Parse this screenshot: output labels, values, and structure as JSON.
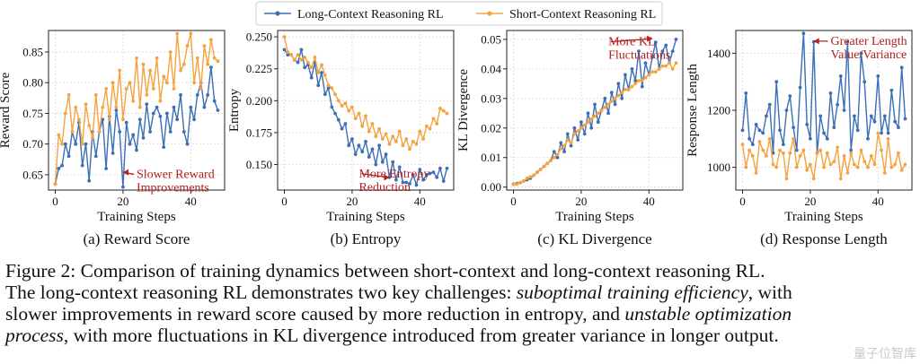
{
  "legend": {
    "long": "Long-Context Reasoning RL",
    "short": "Short-Context Reasoning RL"
  },
  "colors": {
    "long": "#3b6fb6",
    "short": "#f5a340",
    "annot": "#b22020",
    "grid": "#d9d9d9"
  },
  "chart_data": [
    {
      "type": "line",
      "caption": "(a) Reward Score",
      "xlabel": "Training Steps",
      "ylabel": "Reward Score",
      "xlim": [
        -2,
        50
      ],
      "ylim": [
        0.625,
        0.885
      ],
      "xticks": [
        0,
        20,
        40
      ],
      "yticks": [
        0.65,
        0.7,
        0.75,
        0.8,
        0.85
      ],
      "ytick_labels": [
        "0.65",
        "0.70",
        "0.75",
        "0.80",
        "0.85"
      ],
      "annotation": {
        "lines": [
          "Slower Reward",
          "Improvements"
        ],
        "x": 24,
        "y": 0.645,
        "arrow_to": [
          20,
          0.648
        ]
      },
      "series": [
        {
          "key": "long",
          "name": "Long-Context Reasoning RL",
          "values": [
            0.635,
            0.66,
            0.665,
            0.7,
            0.68,
            0.72,
            0.7,
            0.735,
            0.665,
            0.7,
            0.64,
            0.72,
            0.68,
            0.72,
            0.74,
            0.66,
            0.745,
            0.685,
            0.755,
            0.72,
            0.63,
            0.735,
            0.7,
            0.715,
            0.69,
            0.74,
            0.71,
            0.765,
            0.72,
            0.75,
            0.76,
            0.745,
            0.695,
            0.75,
            0.72,
            0.76,
            0.74,
            0.78,
            0.72,
            0.7,
            0.76,
            0.74,
            0.78,
            0.8,
            0.76,
            0.78,
            0.825,
            0.77,
            0.755
          ]
        },
        {
          "key": "short",
          "name": "Short-Context Reasoning RL",
          "values": [
            0.635,
            0.715,
            0.7,
            0.75,
            0.78,
            0.72,
            0.76,
            0.74,
            0.7,
            0.765,
            0.73,
            0.71,
            0.78,
            0.72,
            0.76,
            0.79,
            0.74,
            0.8,
            0.76,
            0.82,
            0.74,
            0.79,
            0.8,
            0.77,
            0.84,
            0.76,
            0.83,
            0.78,
            0.82,
            0.79,
            0.84,
            0.77,
            0.81,
            0.8,
            0.85,
            0.79,
            0.88,
            0.82,
            0.83,
            0.86,
            0.88,
            0.8,
            0.84,
            0.79,
            0.86,
            0.83,
            0.87,
            0.84,
            0.835
          ]
        }
      ]
    },
    {
      "type": "line",
      "caption": "(b) Entropy",
      "xlabel": "Training Steps",
      "ylabel": "Entropy",
      "xlim": [
        -2,
        50
      ],
      "ylim": [
        0.13,
        0.255
      ],
      "xticks": [
        0,
        20,
        40
      ],
      "yticks": [
        0.15,
        0.175,
        0.2,
        0.225,
        0.25
      ],
      "ytick_labels": [
        "0.150",
        "0.175",
        "0.200",
        "0.225",
        "0.250"
      ],
      "annotation": {
        "lines": [
          "More Entropy",
          "Reduction"
        ],
        "x": 22,
        "y": 0.14,
        "arrow_to": [
          31,
          0.137
        ]
      },
      "series": [
        {
          "key": "long",
          "name": "Long-Context Reasoning RL",
          "values": [
            0.24,
            0.236,
            0.236,
            0.232,
            0.23,
            0.24,
            0.226,
            0.228,
            0.218,
            0.23,
            0.212,
            0.222,
            0.205,
            0.21,
            0.195,
            0.19,
            0.185,
            0.178,
            0.182,
            0.165,
            0.17,
            0.158,
            0.165,
            0.16,
            0.168,
            0.156,
            0.162,
            0.15,
            0.165,
            0.152,
            0.158,
            0.14,
            0.152,
            0.138,
            0.148,
            0.136,
            0.136,
            0.135,
            0.142,
            0.134,
            0.146,
            0.138,
            0.142,
            0.143,
            0.144,
            0.14,
            0.147,
            0.137,
            0.147
          ]
        },
        {
          "key": "short",
          "name": "Short-Context Reasoning RL",
          "values": [
            0.25,
            0.238,
            0.236,
            0.232,
            0.236,
            0.232,
            0.234,
            0.23,
            0.226,
            0.234,
            0.222,
            0.228,
            0.22,
            0.212,
            0.21,
            0.205,
            0.2,
            0.196,
            0.198,
            0.192,
            0.195,
            0.186,
            0.19,
            0.18,
            0.188,
            0.176,
            0.182,
            0.172,
            0.178,
            0.17,
            0.174,
            0.166,
            0.172,
            0.168,
            0.176,
            0.165,
            0.17,
            0.162,
            0.168,
            0.166,
            0.176,
            0.17,
            0.18,
            0.178,
            0.186,
            0.182,
            0.194,
            0.192,
            0.19
          ]
        }
      ]
    },
    {
      "type": "line",
      "caption": "(c) KL Divergence",
      "xlabel": "Training Steps",
      "ylabel": "KL Divergence",
      "xlim": [
        -2,
        50
      ],
      "ylim": [
        -0.001,
        0.053
      ],
      "xticks": [
        0,
        20,
        40
      ],
      "yticks": [
        0.0,
        0.01,
        0.02,
        0.03,
        0.04,
        0.05
      ],
      "ytick_labels": [
        "0.00",
        "0.01",
        "0.02",
        "0.03",
        "0.04",
        "0.05"
      ],
      "annotation": {
        "lines": [
          "More KL",
          "Fluctuations"
        ],
        "x": 28,
        "y": 0.048,
        "arrow_to": [
          41,
          0.049
        ]
      },
      "series": [
        {
          "key": "long",
          "name": "Long-Context Reasoning RL",
          "values": [
            0.001,
            0.0012,
            0.0015,
            0.002,
            0.0025,
            0.003,
            0.004,
            0.005,
            0.006,
            0.007,
            0.008,
            0.009,
            0.012,
            0.01,
            0.015,
            0.012,
            0.018,
            0.014,
            0.02,
            0.016,
            0.022,
            0.018,
            0.025,
            0.02,
            0.028,
            0.022,
            0.026,
            0.03,
            0.025,
            0.032,
            0.028,
            0.035,
            0.03,
            0.038,
            0.033,
            0.04,
            0.036,
            0.046,
            0.034,
            0.042,
            0.038,
            0.044,
            0.049,
            0.04,
            0.046,
            0.048,
            0.042,
            0.046,
            0.05
          ]
        },
        {
          "key": "short",
          "name": "Short-Context Reasoning RL",
          "values": [
            0.001,
            0.001,
            0.0015,
            0.002,
            0.003,
            0.0035,
            0.004,
            0.005,
            0.006,
            0.007,
            0.008,
            0.009,
            0.01,
            0.011,
            0.013,
            0.014,
            0.016,
            0.015,
            0.018,
            0.019,
            0.02,
            0.021,
            0.022,
            0.023,
            0.024,
            0.025,
            0.026,
            0.027,
            0.028,
            0.029,
            0.03,
            0.031,
            0.032,
            0.033,
            0.033,
            0.034,
            0.035,
            0.036,
            0.036,
            0.037,
            0.038,
            0.039,
            0.039,
            0.04,
            0.041,
            0.041,
            0.042,
            0.04,
            0.042
          ]
        }
      ]
    },
    {
      "type": "line",
      "caption": "(d) Response Length",
      "xlabel": "Training Steps",
      "ylabel": "Response Length",
      "xlim": [
        -2,
        50
      ],
      "ylim": [
        920,
        1480
      ],
      "xticks": [
        0,
        20,
        40
      ],
      "yticks": [
        1000,
        1200,
        1400
      ],
      "ytick_labels": [
        "1000",
        "1200",
        "1400"
      ],
      "annotation": {
        "lines": [
          "Greater Length",
          "Value/Variance"
        ],
        "x": 26,
        "y": 1430,
        "arrow_to": [
          21,
          1430
        ]
      },
      "series": [
        {
          "key": "long",
          "name": "Long-Context Reasoning RL",
          "values": [
            1130,
            1260,
            1100,
            1080,
            1150,
            1130,
            1120,
            1180,
            1220,
            1050,
            1300,
            1130,
            1080,
            1200,
            1250,
            1140,
            1060,
            1280,
            1470,
            1150,
            1100,
            1440,
            1050,
            1180,
            1120,
            1100,
            1260,
            1140,
            1220,
            1320,
            1200,
            1440,
            1060,
            1180,
            1130,
            1400,
            1300,
            1100,
            1180,
            1160,
            1320,
            1120,
            1180,
            1120,
            1270,
            1160,
            1140,
            1350,
            1170
          ]
        },
        {
          "key": "short",
          "name": "Short-Context Reasoning RL",
          "values": [
            1080,
            1000,
            1060,
            1040,
            980,
            1090,
            1060,
            1040,
            1100,
            1010,
            1000,
            1060,
            1050,
            960,
            1050,
            1100,
            1000,
            1040,
            1060,
            990,
            1010,
            960,
            1050,
            1060,
            1000,
            1050,
            1010,
            1020,
            1070,
            960,
            1040,
            980,
            1050,
            1010,
            1000,
            1060,
            1020,
            1000,
            1040,
            1010,
            1120,
            1060,
            980,
            1100,
            1000,
            1010,
            1050,
            990,
            1010
          ]
        }
      ]
    }
  ],
  "caption": {
    "line1": "Figure 2: Comparison of training dynamics between short-context and long-context reasoning RL.",
    "line2_a": "The long-context reasoning RL demonstrates two key challenges: ",
    "line2_em": "suboptimal training efficiency",
    "line2_b": ", with",
    "line3_a": "slower improvements in reward score caused by more reduction in entropy, and ",
    "line3_em": "unstable optimization",
    "line4_em": "process",
    "line4_b": ", with more fluctuations in KL divergence introduced from greater variance in longer output."
  },
  "watermark": "量子位智库"
}
